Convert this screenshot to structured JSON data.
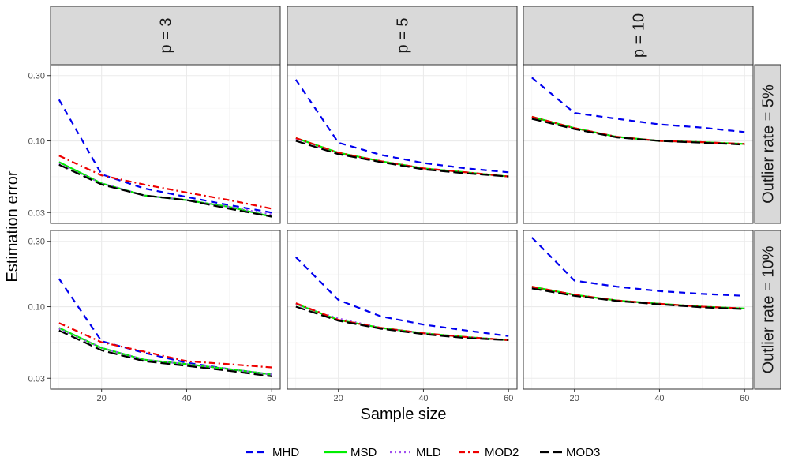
{
  "chart_data": {
    "type": "line",
    "xlabel": "Sample size",
    "ylabel": "Estimation error",
    "y_scale": "log",
    "ylim": [
      0.025,
      0.36
    ],
    "xlim": [
      8,
      62
    ],
    "x_ticks": [
      20,
      40,
      60
    ],
    "y_ticks": [
      0.03,
      0.1,
      0.3
    ],
    "y_tick_labels": [
      "0.03",
      "0.10",
      "0.30"
    ],
    "grid": true,
    "legend_position": "bottom",
    "columns": [
      "p = 3",
      "p = 5",
      "p = 10"
    ],
    "rows": [
      "Outlier rate = 5%",
      "Outlier rate = 10%"
    ],
    "x": [
      10,
      20,
      30,
      40,
      50,
      60
    ],
    "series_styles": [
      {
        "name": "MHD",
        "color": "#0000ee",
        "dash": "8,6"
      },
      {
        "name": "MSD",
        "color": "#00ee00",
        "dash": ""
      },
      {
        "name": "MLD",
        "color": "#a04ff0",
        "dash": "2,4"
      },
      {
        "name": "MOD2",
        "color": "#ee0000",
        "dash": "8,4,2,4"
      },
      {
        "name": "MOD3",
        "color": "#000000",
        "dash": "12,5"
      }
    ],
    "panels": [
      {
        "row": 0,
        "col": 0,
        "series": [
          {
            "name": "MHD",
            "values": [
              0.2,
              0.057,
              0.045,
              0.039,
              0.034,
              0.03
            ]
          },
          {
            "name": "MSD",
            "values": [
              0.07,
              0.049,
              0.04,
              0.037,
              0.033,
              0.028
            ]
          },
          {
            "name": "MLD",
            "values": [
              0.068,
              0.049,
              0.04,
              0.037,
              0.033,
              0.029
            ]
          },
          {
            "name": "MOD2",
            "values": [
              0.078,
              0.056,
              0.048,
              0.042,
              0.037,
              0.032
            ]
          },
          {
            "name": "MOD3",
            "values": [
              0.067,
              0.048,
              0.04,
              0.037,
              0.032,
              0.028
            ]
          }
        ]
      },
      {
        "row": 0,
        "col": 1,
        "series": [
          {
            "name": "MHD",
            "values": [
              0.28,
              0.097,
              0.079,
              0.069,
              0.063,
              0.059
            ]
          },
          {
            "name": "MSD",
            "values": [
              0.105,
              0.082,
              0.071,
              0.063,
              0.059,
              0.055
            ]
          },
          {
            "name": "MLD",
            "values": [
              0.104,
              0.081,
              0.071,
              0.063,
              0.059,
              0.055
            ]
          },
          {
            "name": "MOD2",
            "values": [
              0.105,
              0.082,
              0.071,
              0.063,
              0.059,
              0.055
            ]
          },
          {
            "name": "MOD3",
            "values": [
              0.1,
              0.08,
              0.07,
              0.062,
              0.058,
              0.055
            ]
          }
        ]
      },
      {
        "row": 0,
        "col": 2,
        "series": [
          {
            "name": "MHD",
            "values": [
              0.29,
              0.16,
              0.145,
              0.132,
              0.125,
              0.116
            ]
          },
          {
            "name": "MSD",
            "values": [
              0.15,
              0.124,
              0.107,
              0.1,
              0.098,
              0.095
            ]
          },
          {
            "name": "MLD",
            "values": [
              0.149,
              0.124,
              0.107,
              0.1,
              0.098,
              0.095
            ]
          },
          {
            "name": "MOD2",
            "values": [
              0.15,
              0.124,
              0.107,
              0.1,
              0.098,
              0.095
            ]
          },
          {
            "name": "MOD3",
            "values": [
              0.145,
              0.122,
              0.106,
              0.1,
              0.097,
              0.094
            ]
          }
        ]
      },
      {
        "row": 1,
        "col": 0,
        "series": [
          {
            "name": "MHD",
            "values": [
              0.16,
              0.056,
              0.046,
              0.039,
              0.035,
              0.032
            ]
          },
          {
            "name": "MSD",
            "values": [
              0.07,
              0.05,
              0.041,
              0.038,
              0.035,
              0.032
            ]
          },
          {
            "name": "MLD",
            "values": [
              0.069,
              0.05,
              0.041,
              0.038,
              0.035,
              0.032
            ]
          },
          {
            "name": "MOD2",
            "values": [
              0.076,
              0.055,
              0.047,
              0.04,
              0.038,
              0.036
            ]
          },
          {
            "name": "MOD3",
            "values": [
              0.067,
              0.048,
              0.04,
              0.037,
              0.034,
              0.031
            ]
          }
        ]
      },
      {
        "row": 1,
        "col": 1,
        "series": [
          {
            "name": "MHD",
            "values": [
              0.23,
              0.112,
              0.085,
              0.074,
              0.067,
              0.061
            ]
          },
          {
            "name": "MSD",
            "values": [
              0.105,
              0.08,
              0.07,
              0.064,
              0.06,
              0.057
            ]
          },
          {
            "name": "MLD",
            "values": [
              0.104,
              0.082,
              0.07,
              0.064,
              0.06,
              0.057
            ]
          },
          {
            "name": "MOD2",
            "values": [
              0.106,
              0.08,
              0.07,
              0.064,
              0.06,
              0.057
            ]
          },
          {
            "name": "MOD3",
            "values": [
              0.1,
              0.079,
              0.069,
              0.063,
              0.059,
              0.057
            ]
          }
        ]
      },
      {
        "row": 1,
        "col": 2,
        "series": [
          {
            "name": "MHD",
            "values": [
              0.32,
              0.155,
              0.14,
              0.13,
              0.124,
              0.12
            ]
          },
          {
            "name": "MSD",
            "values": [
              0.14,
              0.122,
              0.111,
              0.105,
              0.1,
              0.097
            ]
          },
          {
            "name": "MLD",
            "values": [
              0.139,
              0.122,
              0.111,
              0.105,
              0.1,
              0.097
            ]
          },
          {
            "name": "MOD2",
            "values": [
              0.14,
              0.122,
              0.111,
              0.105,
              0.1,
              0.097
            ]
          },
          {
            "name": "MOD3",
            "values": [
              0.136,
              0.12,
              0.11,
              0.104,
              0.099,
              0.096
            ]
          }
        ]
      }
    ]
  }
}
